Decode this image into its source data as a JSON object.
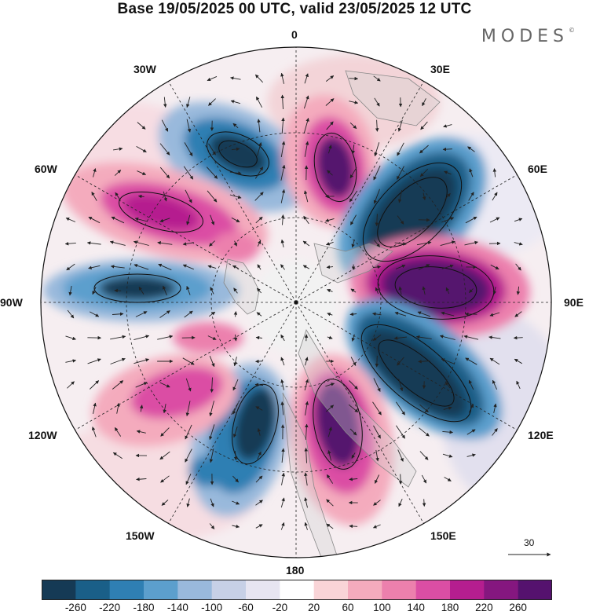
{
  "title": "Base 19/05/2025 00 UTC, valid 23/05/2025 12 UTC",
  "brand": "MODES",
  "brand_mark": "©",
  "lon_labels": {
    "n": "0",
    "ne30": "30E",
    "ne60": "60E",
    "e": "90E",
    "se120": "120E",
    "se150": "150E",
    "s": "180",
    "sw150": "150W",
    "sw120": "120W",
    "w": "90W",
    "nw60": "60W",
    "nw30": "30W"
  },
  "reference_vector": "30",
  "colorbar": {
    "ticks": [
      "-260",
      "-220",
      "-180",
      "-140",
      "-100",
      "-60",
      "-20",
      "20",
      "60",
      "100",
      "140",
      "180",
      "220",
      "260"
    ],
    "colors": [
      "#153a55",
      "#1a5f88",
      "#2f7fb3",
      "#5c9fcd",
      "#99b9dc",
      "#c7d0e6",
      "#e7e5f1",
      "#ffffff",
      "#f9d4d7",
      "#f4abbd",
      "#ec80ad",
      "#db4ea4",
      "#b51e8f",
      "#85177f",
      "#55126e"
    ]
  },
  "map_features": {
    "projection": "north-polar-stereographic",
    "anomalies": [
      {
        "sign": "negative",
        "center_lon": "30W",
        "level": "-260"
      },
      {
        "sign": "positive",
        "center_lon": "15E",
        "level": "260"
      },
      {
        "sign": "negative",
        "center_lon": "45E",
        "level": "-260"
      },
      {
        "sign": "positive",
        "center_lon": "85E",
        "level": "260"
      },
      {
        "sign": "negative",
        "center_lon": "125E",
        "level": "-260"
      },
      {
        "sign": "positive",
        "center_lon": "165E",
        "level": "260"
      },
      {
        "sign": "negative",
        "center_lon": "150W",
        "level": "-260"
      },
      {
        "sign": "positive",
        "center_lon": "120W",
        "level": "180"
      },
      {
        "sign": "positive",
        "center_lon": "105W",
        "level": "140"
      },
      {
        "sign": "negative",
        "center_lon": "90W",
        "level": "-220"
      },
      {
        "sign": "positive",
        "center_lon": "60W",
        "level": "220"
      }
    ]
  }
}
